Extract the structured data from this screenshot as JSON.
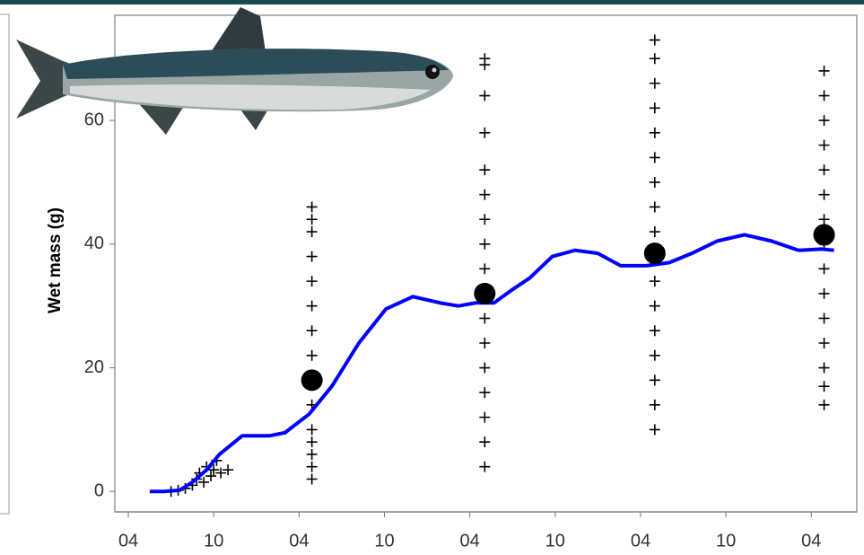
{
  "chart_data": {
    "type": "scatter",
    "y_label": "Wet mass (g)",
    "xlim": [
      -0.95,
      51.2
    ],
    "ylim": [
      -3.3,
      77
    ],
    "xticks": [
      {
        "value": 0,
        "label": "04"
      },
      {
        "value": 6,
        "label": "10"
      },
      {
        "value": 12,
        "label": "04"
      },
      {
        "value": 18,
        "label": "10"
      },
      {
        "value": 24,
        "label": "04"
      },
      {
        "value": 30,
        "label": "10"
      },
      {
        "value": 36,
        "label": "04"
      },
      {
        "value": 42,
        "label": "10"
      },
      {
        "value": 48,
        "label": "04"
      }
    ],
    "yticks": [
      0,
      20,
      40,
      60
    ],
    "series": [
      {
        "style": "cross",
        "color": "#000000",
        "x": [
          3.0,
          3.5,
          4.0,
          4.5,
          4.8,
          5.0,
          5.3,
          5.5,
          5.8,
          6.0,
          6.2,
          6.5,
          7.0,
          12.9,
          12.9,
          12.9,
          12.9,
          12.9,
          12.9,
          12.9,
          12.9,
          12.9,
          12.9,
          12.9,
          12.9,
          12.9,
          12.9,
          12.9,
          25.05,
          25.05,
          25.05,
          25.05,
          25.05,
          25.05,
          25.05,
          25.05,
          25.05,
          25.05,
          25.05,
          25.05,
          25.05,
          25.05,
          25.05,
          25.05,
          25.05,
          37.0,
          37.0,
          37.0,
          37.0,
          37.0,
          37.0,
          37.0,
          37.0,
          37.0,
          37.0,
          37.0,
          37.0,
          37.0,
          37.0,
          37.0,
          37.0,
          37.0,
          48.9,
          48.9,
          48.9,
          48.9,
          48.9,
          48.9,
          48.9,
          48.9,
          48.9,
          48.9,
          48.9,
          48.9,
          48.9,
          48.9,
          48.9
        ],
        "values": [
          0,
          0.2,
          0.5,
          1,
          2,
          3,
          1.5,
          4,
          2.5,
          3.5,
          5,
          3,
          3.5,
          2,
          4,
          6,
          8,
          10,
          14,
          18,
          22,
          26,
          30,
          34,
          38,
          42,
          44,
          46,
          4,
          8,
          12,
          16,
          20,
          24,
          28,
          32,
          36,
          40,
          44,
          48,
          52,
          58,
          64,
          69,
          70,
          10,
          14,
          18,
          22,
          26,
          30,
          34,
          38,
          42,
          46,
          50,
          54,
          58,
          62,
          66,
          70,
          73,
          14,
          17,
          20,
          24,
          28,
          32,
          36,
          40,
          44,
          48,
          52,
          56,
          60,
          64,
          68
        ]
      },
      {
        "style": "line",
        "color": "#0000ff",
        "x": [
          1.5,
          2.5,
          3.6,
          4.5,
          5.5,
          6.4,
          8,
          9.9,
          11,
          12.7,
          14.3,
          16.2,
          18.1,
          20,
          21.9,
          23.2,
          24.4,
          25.7,
          26.9,
          28.2,
          29.8,
          31.4,
          33,
          34.6,
          36.4,
          38,
          39.6,
          41.4,
          43.3,
          45.2,
          47.1,
          48.7,
          49.6
        ],
        "values": [
          0,
          0,
          0.2,
          1.5,
          3.5,
          6,
          9,
          9,
          9.5,
          12.5,
          17,
          24,
          29.5,
          31.5,
          30.5,
          30,
          30.5,
          30.5,
          32.5,
          34.5,
          38,
          39,
          38.5,
          36.5,
          36.5,
          37,
          38.5,
          40.5,
          41.5,
          40.5,
          39,
          39.2,
          39
        ]
      },
      {
        "style": "dot",
        "color": "#000000",
        "x": [
          12.9,
          25.05,
          37.0,
          48.9
        ],
        "values": [
          18,
          32,
          38.5,
          41.5
        ]
      }
    ]
  }
}
